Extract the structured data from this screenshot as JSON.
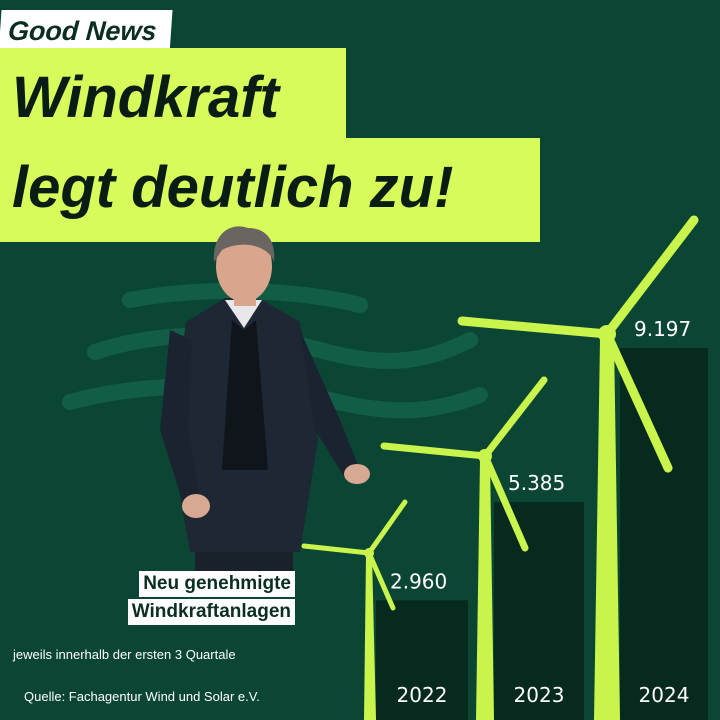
{
  "tag": "Good News",
  "title_line1": "Windkraft",
  "title_line2": "legt deutlich zu!",
  "caption_line1": "Neu genehmigte",
  "caption_line2": "Windkraftanlagen",
  "subnote": "jeweils innerhalb der ersten 3 Quartale",
  "source": "Quelle: Fachagentur Wind und Solar e.V.",
  "colors": {
    "background": "#0b4634",
    "accent": "#d7fb5a",
    "bar": "#062a1e",
    "text": "#ffffff"
  },
  "chart_data": {
    "type": "bar",
    "title": "Windkraft legt deutlich zu!",
    "xlabel": "",
    "ylabel": "",
    "categories": [
      "2022",
      "2023",
      "2024"
    ],
    "values": [
      2960,
      5385,
      9197
    ],
    "value_labels": [
      "2.960",
      "5.385",
      "9.197"
    ],
    "ylim": [
      0,
      10000
    ],
    "grid": false,
    "legend": "none"
  }
}
